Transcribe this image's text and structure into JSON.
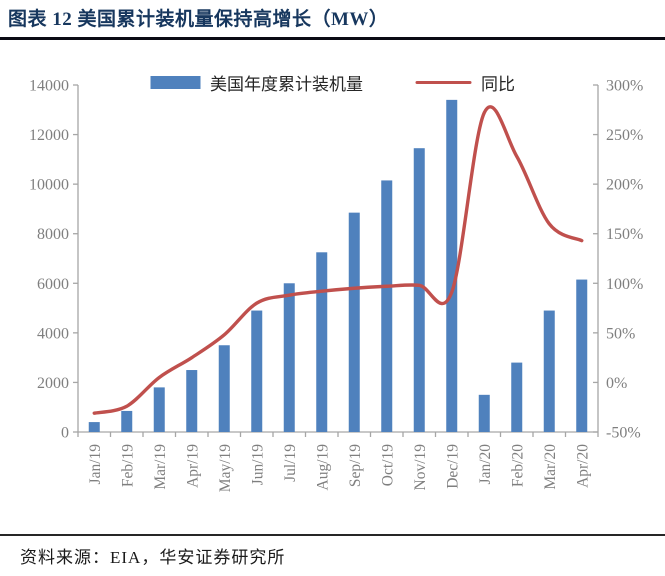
{
  "page": {
    "title": "图表 12 美国累计装机量保持高增长（MW）",
    "source": "资料来源：EIA，华安证券研究所"
  },
  "chart_data": {
    "type": "bar+line",
    "title": "美国累计装机量保持高增长（MW）",
    "categories": [
      "Jan/19",
      "Feb/19",
      "Mar/19",
      "Apr/19",
      "May/19",
      "Jun/19",
      "Jul/19",
      "Aug/19",
      "Sep/19",
      "Oct/19",
      "Nov/19",
      "Dec/19",
      "Jan/20",
      "Feb/20",
      "Mar/20",
      "Apr/20"
    ],
    "series": [
      {
        "name": "美国年度累计装机量",
        "type": "bar",
        "axis": "left",
        "color": "#4F81BD",
        "values": [
          400,
          850,
          1800,
          2500,
          3500,
          4900,
          6000,
          7250,
          8850,
          10150,
          11450,
          13400,
          1500,
          2800,
          4900,
          6150
        ]
      },
      {
        "name": "同比",
        "type": "line",
        "axis": "right",
        "color": "#C0504D",
        "unit": "%",
        "values": [
          -31,
          -24,
          5,
          25,
          48,
          80,
          88,
          92,
          95,
          97,
          98,
          91,
          272,
          228,
          160,
          143
        ]
      }
    ],
    "left_axis": {
      "min": 0,
      "max": 14000,
      "tick_labels": [
        "0",
        "2000",
        "4000",
        "6000",
        "8000",
        "10000",
        "12000",
        "14000"
      ]
    },
    "right_axis": {
      "min": -50,
      "max": 300,
      "tick_labels": [
        "-50%",
        "0%",
        "50%",
        "100%",
        "150%",
        "200%",
        "250%",
        "300%"
      ]
    },
    "legend_position": "top",
    "grid": false
  },
  "colors": {
    "bar": "#4F81BD",
    "line": "#C0504D",
    "axis": "#A6A6A6",
    "tick_text": "#7F7F7F",
    "title": "#17375E"
  }
}
